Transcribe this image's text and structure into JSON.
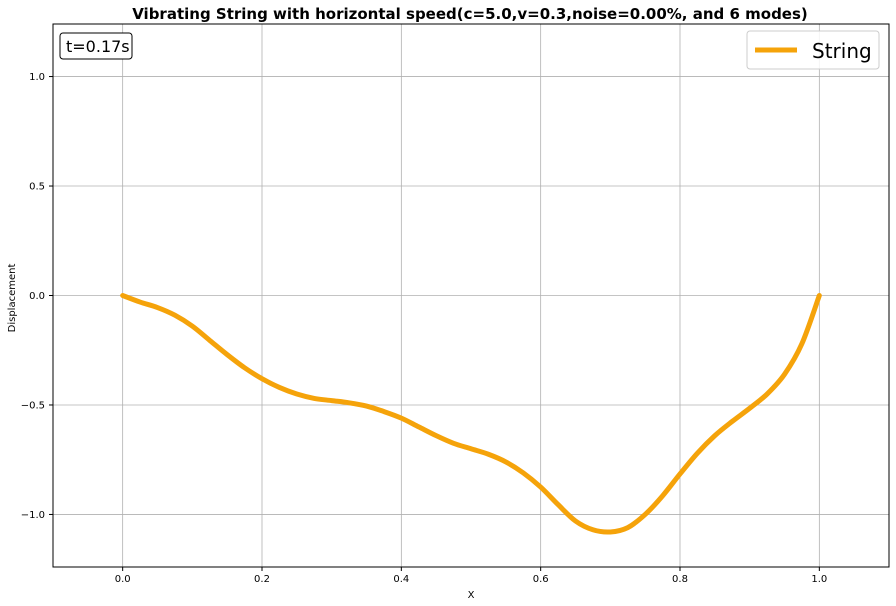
{
  "chart_data": {
    "type": "line",
    "title": "Vibrating String with horizontal speed(c=5.0,v=0.3,noise=0.00%, and 6 modes)",
    "xlabel": "X",
    "ylabel": "Displacement",
    "xlim": [
      -0.1,
      1.1
    ],
    "ylim": [
      -1.24,
      1.24
    ],
    "x_ticks": [
      0.0,
      0.2,
      0.4,
      0.6,
      0.8,
      1.0
    ],
    "x_tick_labels": [
      "0.0",
      "0.2",
      "0.4",
      "0.6",
      "0.8",
      "1.0"
    ],
    "y_ticks": [
      1.0,
      0.5,
      0.0,
      -0.5,
      -1.0
    ],
    "y_tick_labels": [
      "1.0",
      "0.5",
      "0.0",
      "−0.5",
      "−1.0"
    ],
    "grid": true,
    "legend_position": "top-right",
    "annotation": "t=0.17s",
    "series": [
      {
        "name": "String",
        "color": "#f5a30a",
        "x": [
          0.0,
          0.025,
          0.05,
          0.075,
          0.1,
          0.125,
          0.15,
          0.175,
          0.2,
          0.225,
          0.25,
          0.275,
          0.3,
          0.325,
          0.35,
          0.375,
          0.4,
          0.425,
          0.45,
          0.475,
          0.5,
          0.525,
          0.55,
          0.575,
          0.6,
          0.625,
          0.65,
          0.675,
          0.7,
          0.725,
          0.75,
          0.775,
          0.8,
          0.825,
          0.85,
          0.875,
          0.9,
          0.925,
          0.95,
          0.975,
          1.0
        ],
        "y": [
          0.0,
          -0.03,
          -0.055,
          -0.09,
          -0.14,
          -0.205,
          -0.27,
          -0.33,
          -0.38,
          -0.42,
          -0.45,
          -0.47,
          -0.48,
          -0.49,
          -0.505,
          -0.53,
          -0.56,
          -0.6,
          -0.64,
          -0.675,
          -0.7,
          -0.725,
          -0.76,
          -0.81,
          -0.875,
          -0.955,
          -1.03,
          -1.07,
          -1.08,
          -1.06,
          -1.0,
          -0.915,
          -0.815,
          -0.72,
          -0.64,
          -0.575,
          -0.515,
          -0.45,
          -0.36,
          -0.22,
          0.0
        ]
      }
    ]
  }
}
